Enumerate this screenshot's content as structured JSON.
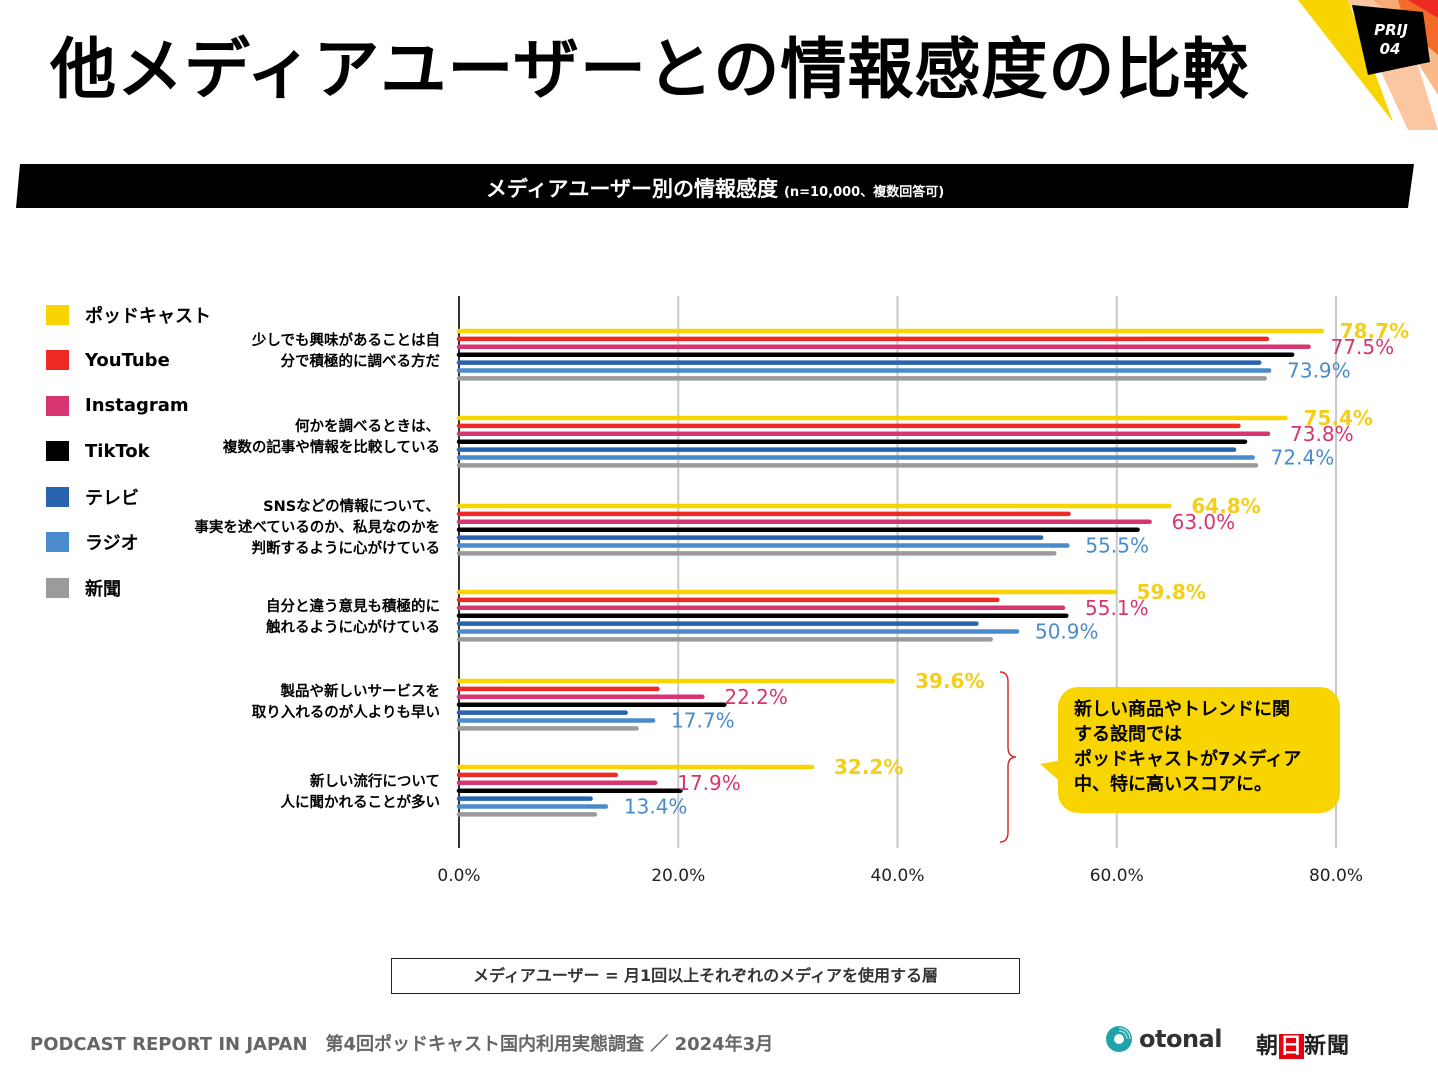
{
  "header": {
    "title": "他メディアユーザーとの情報感度の比較",
    "badge_line1": "PRIJ",
    "badge_line2": "04"
  },
  "subtitle": {
    "main": "メディアユーザー別の情報感度",
    "note": "(n=10,000、複数回答可)"
  },
  "legend": [
    {
      "label": "ポッドキャスト",
      "color": "#F8D500"
    },
    {
      "label": "YouTube",
      "color": "#EE2A24"
    },
    {
      "label": "Instagram",
      "color": "#D63570"
    },
    {
      "label": "TikTok",
      "color": "#000000"
    },
    {
      "label": "テレビ",
      "color": "#2763AF"
    },
    {
      "label": "ラジオ",
      "color": "#4A8CCB"
    },
    {
      "label": "新聞",
      "color": "#9B9B9B"
    }
  ],
  "chart_data": {
    "type": "bar",
    "orientation": "horizontal",
    "title": "メディアユーザー別の情報感度",
    "xlabel": "",
    "ylabel": "",
    "xlim": [
      0,
      80
    ],
    "x_ticks": [
      "0.0%",
      "20.0%",
      "40.0%",
      "60.0%",
      "80.0%"
    ],
    "x_tick_values": [
      0,
      20,
      40,
      60,
      80
    ],
    "grid": true,
    "legend_position": "left",
    "categories": [
      [
        "少しでも興味があることは自",
        "分で積極的に調べる方だ"
      ],
      [
        "何かを調べるときは、",
        "複数の記事や情報を比較している"
      ],
      [
        "SNSなどの情報について、",
        "事実を述べているのか、私見なのかを",
        "判断するように心がけている"
      ],
      [
        "自分と違う意見も積極的に",
        "触れるように心がけている"
      ],
      [
        "製品や新しいサービスを",
        "取り入れるのが人よりも早い"
      ],
      [
        "新しい流行について",
        "人に聞かれることが多い"
      ]
    ],
    "series": [
      {
        "name": "ポッドキャスト",
        "color": "#F8D500",
        "values": [
          78.7,
          75.4,
          64.8,
          59.8,
          39.6,
          32.2
        ],
        "labeled": true
      },
      {
        "name": "YouTube",
        "color": "#EE2A24",
        "values": [
          73.7,
          71.1,
          55.6,
          49.1,
          18.1,
          14.3
        ],
        "labeled": false
      },
      {
        "name": "Instagram",
        "color": "#D63570",
        "values": [
          77.5,
          73.8,
          63.0,
          55.1,
          22.2,
          17.9
        ],
        "labeled": true
      },
      {
        "name": "TikTok",
        "color": "#000000",
        "values": [
          76.0,
          71.7,
          61.9,
          55.4,
          24.2,
          20.2
        ],
        "labeled": false
      },
      {
        "name": "テレビ",
        "color": "#2763AF",
        "values": [
          73.0,
          70.7,
          53.1,
          47.2,
          15.2,
          12.0
        ],
        "labeled": false
      },
      {
        "name": "ラジオ",
        "color": "#4A8CCB",
        "values": [
          73.9,
          72.4,
          55.5,
          50.9,
          17.7,
          13.4
        ],
        "labeled": true
      },
      {
        "name": "新聞",
        "color": "#9B9B9B",
        "values": [
          73.5,
          72.7,
          54.3,
          48.5,
          16.2,
          12.4
        ],
        "labeled": false
      }
    ],
    "data_labels": [
      {
        "series": "ポッドキャスト",
        "texts": [
          "78.7%",
          "75.4%",
          "64.8%",
          "59.8%",
          "39.6%",
          "32.2%"
        ]
      },
      {
        "series": "Instagram",
        "texts": [
          "77.5%",
          "73.8%",
          "63.0%",
          "55.1%",
          "22.2%",
          "17.9%"
        ]
      },
      {
        "series": "ラジオ",
        "texts": [
          "73.9%",
          "72.4%",
          "55.5%",
          "50.9%",
          "17.7%",
          "13.4%"
        ]
      }
    ],
    "annotation": {
      "bracket_categories": [
        4,
        5
      ],
      "bracket_color": "#D0342C"
    }
  },
  "callout": {
    "lines": [
      "新しい商品やトレンドに関",
      "する設問では",
      "ポッドキャストが7メディア",
      "中、特に高いスコアに。"
    ],
    "color": "#F8D500"
  },
  "definition": "メディアユーザー = 月1回以上それぞれのメディアを使用する層",
  "footer": {
    "report": "PODCAST REPORT IN JAPAN",
    "survey": "第4回ポッドキャスト国内利用実態調査 ／ 2024年3月",
    "logo_otonal": "otonal",
    "logo_asahi_1": "朝",
    "logo_asahi_2": "日",
    "logo_asahi_3": "新聞"
  }
}
